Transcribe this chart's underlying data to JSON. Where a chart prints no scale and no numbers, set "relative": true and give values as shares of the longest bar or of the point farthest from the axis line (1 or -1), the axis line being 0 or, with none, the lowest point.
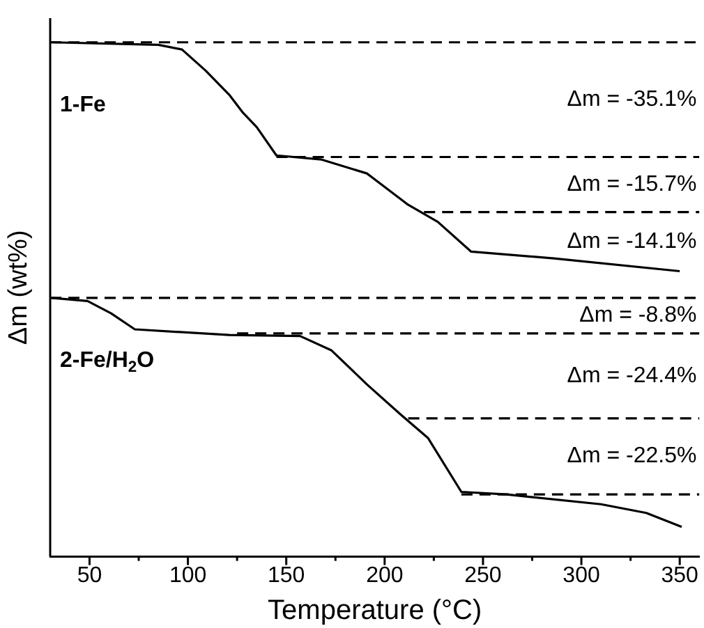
{
  "chart_data": {
    "type": "line",
    "relative": true,
    "xlabel": "Temperature (°C)",
    "ylabel": "Δm (wt%)",
    "xlim": [
      30,
      360
    ],
    "xticks": [
      50,
      {
        "value": 75,
        "label": null
      },
      100,
      {
        "value": 125,
        "label": null
      },
      150,
      {
        "value": 175,
        "label": null
      },
      200,
      {
        "value": 225,
        "label": null
      },
      250,
      {
        "value": 275,
        "label": null
      },
      300,
      {
        "value": 325,
        "label": null
      },
      350
    ],
    "grid": false,
    "legend": false,
    "marker": "none",
    "line_style": "solid",
    "series": [
      {
        "name": "1-Fe",
        "color": "#000000",
        "x": [
          30.7,
          85,
          97,
          109,
          121,
          128,
          135,
          145,
          168,
          191,
          212,
          227,
          244,
          286,
          350
        ],
        "values": [
          1.0,
          0.995,
          0.986,
          0.945,
          0.898,
          0.863,
          0.835,
          0.78,
          0.772,
          0.745,
          0.684,
          0.651,
          0.593,
          0.58,
          0.555
        ]
      },
      {
        "name": "2-Fe/H$_{2}$O",
        "color": "#000000",
        "x": [
          30.7,
          49,
          61,
          73,
          121,
          157,
          173,
          191,
          208,
          222,
          239,
          262,
          310,
          333,
          351
        ],
        "values": [
          0.503,
          0.497,
          0.473,
          0.442,
          0.431,
          0.429,
          0.401,
          0.335,
          0.277,
          0.231,
          0.126,
          0.121,
          0.102,
          0.085,
          0.058
        ]
      },
      {
        "color": "#000000",
        "line_style": "dashed",
        "x": [
          30,
          360
        ],
        "values": [
          1.0,
          1.0
        ]
      },
      {
        "color": "#000000",
        "line_style": "dashed",
        "x": [
          145,
          360
        ],
        "values": [
          0.777,
          0.777
        ]
      },
      {
        "color": "#000000",
        "line_style": "dashed",
        "x": [
          220,
          360
        ],
        "values": [
          0.67,
          0.67
        ]
      },
      {
        "color": "#000000",
        "line_style": "dashed",
        "x": [
          30,
          360
        ],
        "values": [
          0.503,
          0.503
        ]
      },
      {
        "color": "#000000",
        "line_style": "dashed",
        "x": [
          125,
          360
        ],
        "values": [
          0.434,
          0.434
        ]
      },
      {
        "color": "#000000",
        "line_style": "dashed",
        "x": [
          212,
          360
        ],
        "values": [
          0.269,
          0.269
        ]
      },
      {
        "color": "#000000",
        "line_style": "dashed",
        "x": [
          239,
          360
        ],
        "values": [
          0.121,
          0.121
        ]
      }
    ],
    "annotations": [
      "Δm = -35.1%",
      "Δm = -15.7%",
      "Δm = -14.1%",
      "Δm = -8.8%",
      "Δm = -24.4%",
      "Δm = -22.5%"
    ]
  }
}
